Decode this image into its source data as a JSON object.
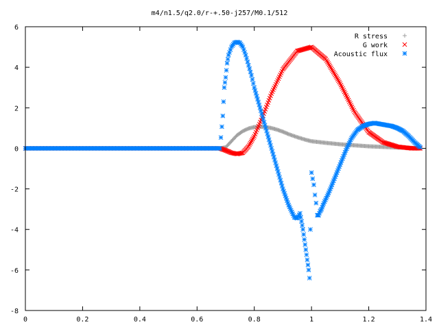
{
  "chart_data": {
    "type": "scatter",
    "title": "m4/n1.5/q2.0/r-+.50-j257/M0.1/512",
    "xlabel": "",
    "ylabel": "",
    "xlim": [
      0,
      1.4
    ],
    "ylim": [
      -8,
      6
    ],
    "xticks": [
      "0",
      "0.2",
      "0.4",
      "0.6",
      "0.8",
      "1",
      "1.2",
      "1.4"
    ],
    "yticks": [
      "6",
      "4",
      "2",
      "0",
      "-2",
      "-4",
      "-6",
      "-8"
    ],
    "grid": false,
    "legend_position": "top-right",
    "series": [
      {
        "name": "R stress",
        "marker": "+",
        "color": "#a0a0a0",
        "x": [
          0.0,
          0.1,
          0.2,
          0.3,
          0.4,
          0.5,
          0.6,
          0.68,
          0.7,
          0.72,
          0.74,
          0.76,
          0.78,
          0.8,
          0.82,
          0.84,
          0.86,
          0.88,
          0.9,
          0.92,
          0.95,
          0.98,
          1.0,
          1.05,
          1.1,
          1.15,
          1.2,
          1.25,
          1.3,
          1.35,
          1.38
        ],
        "y": [
          0,
          0,
          0,
          0,
          0,
          0,
          0,
          0,
          0.05,
          0.35,
          0.65,
          0.85,
          0.98,
          1.05,
          1.07,
          1.05,
          1.0,
          0.92,
          0.82,
          0.7,
          0.55,
          0.42,
          0.35,
          0.27,
          0.2,
          0.15,
          0.1,
          0.07,
          0.04,
          0.02,
          0.01
        ]
      },
      {
        "name": "G work",
        "marker": "x",
        "color": "#ff0000",
        "x": [
          0.0,
          0.1,
          0.2,
          0.3,
          0.4,
          0.5,
          0.6,
          0.68,
          0.7,
          0.72,
          0.74,
          0.76,
          0.78,
          0.8,
          0.83,
          0.86,
          0.9,
          0.95,
          1.0,
          1.05,
          1.1,
          1.15,
          1.2,
          1.25,
          1.3,
          1.35,
          1.38
        ],
        "y": [
          0,
          0,
          0,
          0,
          0,
          0,
          0,
          0,
          -0.1,
          -0.22,
          -0.28,
          -0.22,
          0.1,
          0.6,
          1.6,
          2.7,
          3.9,
          4.8,
          5.0,
          4.4,
          3.2,
          1.8,
          0.8,
          0.3,
          0.08,
          0.0,
          0.0
        ]
      },
      {
        "name": "Acoustic flux",
        "marker": "*",
        "color": "#0080ff",
        "x": [
          0.0,
          0.1,
          0.2,
          0.3,
          0.4,
          0.5,
          0.6,
          0.68,
          0.69,
          0.695,
          0.7,
          0.705,
          0.71,
          0.72,
          0.73,
          0.74,
          0.75,
          0.76,
          0.77,
          0.78,
          0.79,
          0.8,
          0.82,
          0.84,
          0.86,
          0.88,
          0.9,
          0.92,
          0.94,
          0.95,
          0.96,
          0.965,
          0.97,
          0.975,
          0.98,
          0.985,
          0.99,
          0.993,
          0.996,
          1.0,
          1.004,
          1.008,
          1.012,
          1.016,
          1.02,
          1.025,
          1.03,
          1.035,
          1.04,
          1.06,
          1.08,
          1.1,
          1.12,
          1.14,
          1.16,
          1.18,
          1.2,
          1.22,
          1.24,
          1.26,
          1.28,
          1.3,
          1.32,
          1.34,
          1.36,
          1.38
        ],
        "y": [
          0,
          0,
          0,
          0,
          0,
          0,
          0,
          0,
          1.6,
          3.0,
          3.5,
          4.2,
          4.6,
          5.0,
          5.2,
          5.25,
          5.2,
          5.0,
          4.6,
          4.1,
          3.6,
          3.0,
          2.0,
          1.0,
          0.0,
          -1.0,
          -2.0,
          -2.8,
          -3.4,
          -3.45,
          -3.2,
          -3.6,
          -4.0,
          -4.5,
          -5.0,
          -5.5,
          -6.0,
          -6.4,
          -4.0,
          -1.2,
          -1.5,
          -1.8,
          -2.3,
          -2.7,
          -3.3,
          -3.3,
          -3.1,
          -3.0,
          -2.8,
          -2.2,
          -1.5,
          -0.8,
          -0.1,
          0.5,
          0.9,
          1.1,
          1.2,
          1.25,
          1.2,
          1.15,
          1.1,
          1.0,
          0.85,
          0.6,
          0.3,
          0.05
        ]
      }
    ]
  }
}
